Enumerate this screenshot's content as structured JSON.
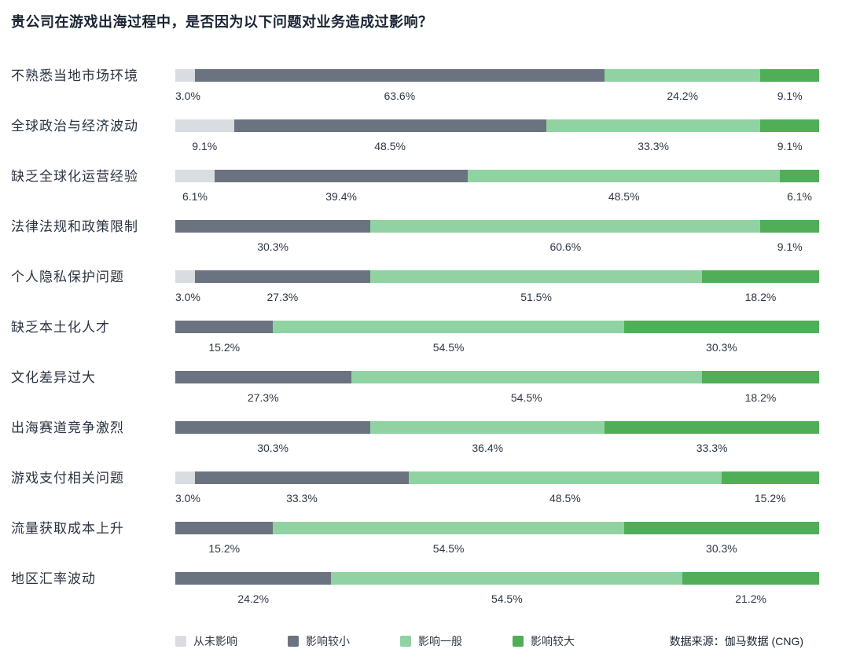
{
  "title": "贵公司在游戏出海过程中，是否因为以下问题对业务造成过影响？",
  "source": "数据来源：伽马数据 (CNG)",
  "colors": {
    "never": "#d9dce0",
    "minor": "#6b7380",
    "moderate": "#90d2a2",
    "major": "#50ae58"
  },
  "legend": [
    {
      "key": "never",
      "label": "从未影响"
    },
    {
      "key": "minor",
      "label": "影响较小"
    },
    {
      "key": "moderate",
      "label": "影响一般"
    },
    {
      "key": "major",
      "label": "影响较大"
    }
  ],
  "chart_data": {
    "type": "bar",
    "orientation": "horizontal",
    "stacked": true,
    "unit": "%",
    "value_label_format": "x.x%",
    "legend_position": "bottom",
    "color_keys": [
      "never",
      "minor",
      "moderate",
      "major"
    ],
    "categories": [
      "不熟悉当地市场环境",
      "全球政治与经济波动",
      "缺乏全球化运营经验",
      "法律法规和政策限制",
      "个人隐私保护问题",
      "缺乏本土化人才",
      "文化差异过大",
      "出海赛道竞争激烈",
      "游戏支付相关问题",
      "流量获取成本上升",
      "地区汇率波动"
    ],
    "series": [
      {
        "name": "从未影响",
        "values": [
          3.0,
          9.1,
          6.1,
          0,
          3.0,
          0,
          0,
          0,
          3.0,
          0,
          0
        ]
      },
      {
        "name": "影响较小",
        "values": [
          63.6,
          48.5,
          39.4,
          30.3,
          27.3,
          15.2,
          27.3,
          30.3,
          33.3,
          15.2,
          24.2
        ]
      },
      {
        "name": "影响一般",
        "values": [
          24.2,
          33.3,
          48.5,
          60.6,
          51.5,
          54.5,
          54.5,
          36.4,
          48.5,
          54.5,
          54.5
        ]
      },
      {
        "name": "影响较大",
        "values": [
          9.1,
          9.1,
          6.1,
          9.1,
          18.2,
          30.3,
          18.2,
          33.3,
          15.2,
          30.3,
          21.2
        ]
      }
    ]
  }
}
